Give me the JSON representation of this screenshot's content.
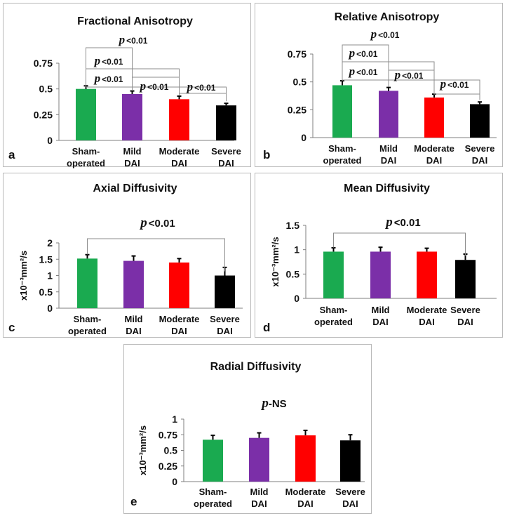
{
  "colors": {
    "sham": "#1aaa50",
    "mild": "#7b2fa8",
    "moderate": "#ff0000",
    "severe": "#000000",
    "frame": "#b9b9b9",
    "bracket": "#8c8c8c"
  },
  "chart_data": [
    {
      "type": "bar",
      "panel": "a",
      "title": "Fractional Anisotropy",
      "ylabel": "",
      "categories": [
        "Sham-operated",
        "Mild DAI",
        "Moderate DAI",
        "Severe DAI"
      ],
      "category_lines": [
        [
          "Sham-",
          "operated"
        ],
        [
          "Mild",
          "DAI"
        ],
        [
          "Moderate",
          "DAI"
        ],
        [
          "Severe",
          "DAI"
        ]
      ],
      "values": [
        0.5,
        0.45,
        0.4,
        0.34
      ],
      "errors": [
        0.03,
        0.03,
        0.03,
        0.02
      ],
      "yticks": [
        "0",
        "0.25",
        "0.5",
        "0.75"
      ],
      "ylim": [
        0,
        0.75
      ],
      "significance": [
        {
          "from": 0,
          "to": 1,
          "p_symbol": "p",
          "text": "<0.01"
        },
        {
          "from": 0,
          "to": 2,
          "p_symbol": "p",
          "text": "<0.01"
        },
        {
          "from": 0,
          "to": 3,
          "p_symbol": "p",
          "text": "<0.01"
        },
        {
          "from": 1,
          "to": 2,
          "p_symbol": "p",
          "text": "<0.01"
        },
        {
          "from": 2,
          "to": 3,
          "p_symbol": "p",
          "text": "<0.01"
        }
      ]
    },
    {
      "type": "bar",
      "panel": "b",
      "title": "Relative Anisotropy",
      "ylabel": "",
      "categories": [
        "Sham-operated",
        "Mild DAI",
        "Moderate DAI",
        "Severe DAI"
      ],
      "category_lines": [
        [
          "Sham-",
          "operated"
        ],
        [
          "Mild",
          "DAI"
        ],
        [
          "Moderate",
          "DAI"
        ],
        [
          "Severe",
          "DAI"
        ]
      ],
      "values": [
        0.47,
        0.42,
        0.36,
        0.3
      ],
      "errors": [
        0.04,
        0.03,
        0.03,
        0.02
      ],
      "yticks": [
        "0",
        "0.25",
        "0.5",
        "0.75"
      ],
      "ylim": [
        0,
        0.75
      ],
      "significance": [
        {
          "from": 0,
          "to": 1,
          "p_symbol": "p",
          "text": "<0.01"
        },
        {
          "from": 0,
          "to": 2,
          "p_symbol": "p",
          "text": "<0.01"
        },
        {
          "from": 0,
          "to": 3,
          "p_symbol": "p",
          "text": "<0.01"
        },
        {
          "from": 1,
          "to": 2,
          "p_symbol": "p",
          "text": "<0.01"
        },
        {
          "from": 2,
          "to": 3,
          "p_symbol": "p",
          "text": "<0.01"
        }
      ]
    },
    {
      "type": "bar",
      "panel": "c",
      "title": "Axial Diffusivity",
      "ylabel": "x10⁻³mm²/s",
      "categories": [
        "Sham-operated",
        "Mild DAI",
        "Moderate DAI",
        "Severe DAI"
      ],
      "category_lines": [
        [
          "Sham-",
          "operated"
        ],
        [
          "Mild",
          "DAI"
        ],
        [
          "Moderate",
          "DAI"
        ],
        [
          "Severe",
          "DAI"
        ]
      ],
      "values": [
        1.52,
        1.45,
        1.4,
        1.0
      ],
      "errors": [
        0.12,
        0.15,
        0.12,
        0.25
      ],
      "yticks": [
        "0",
        "0.5",
        "1",
        "1.5",
        "2"
      ],
      "ylim": [
        0,
        2
      ],
      "significance": [
        {
          "from": 0,
          "to": 3,
          "p_symbol": "p",
          "text": "<0.01"
        }
      ]
    },
    {
      "type": "bar",
      "panel": "d",
      "title": "Mean Diffusivity",
      "ylabel": "x10⁻³mm²/s",
      "categories": [
        "Sham-operated",
        "Mild DAI",
        "Moderate DAI",
        "Severe DAI"
      ],
      "category_lines": [
        [
          "Sham-",
          "operated"
        ],
        [
          "Mild",
          "DAI"
        ],
        [
          "Moderate",
          "DAI"
        ],
        [
          "Severe",
          "DAI"
        ]
      ],
      "values": [
        0.96,
        0.96,
        0.96,
        0.79
      ],
      "errors": [
        0.08,
        0.09,
        0.07,
        0.12
      ],
      "yticks": [
        "0",
        "0.5",
        "1",
        "1.5"
      ],
      "ylim": [
        0,
        1.5
      ],
      "significance": [
        {
          "from": 0,
          "to": 3,
          "p_symbol": "p",
          "text": "<0.01"
        }
      ]
    },
    {
      "type": "bar",
      "panel": "e",
      "title": "Radial Diffusivity",
      "ylabel": "x10⁻³mm²/s",
      "categories": [
        "Sham-operated",
        "Mild DAI",
        "Moderate DAI",
        "Severe DAI"
      ],
      "category_lines": [
        [
          "Sham-",
          "operated"
        ],
        [
          "Mild",
          "DAI"
        ],
        [
          "Moderate",
          "DAI"
        ],
        [
          "Severe",
          "DAI"
        ]
      ],
      "values": [
        0.67,
        0.7,
        0.74,
        0.66
      ],
      "errors": [
        0.07,
        0.08,
        0.08,
        0.09
      ],
      "yticks": [
        "0",
        "0.25",
        "0.5",
        "0.75",
        "1"
      ],
      "ylim": [
        0,
        1
      ],
      "note": {
        "p_symbol": "p",
        "text": "-NS"
      },
      "significance": []
    }
  ]
}
